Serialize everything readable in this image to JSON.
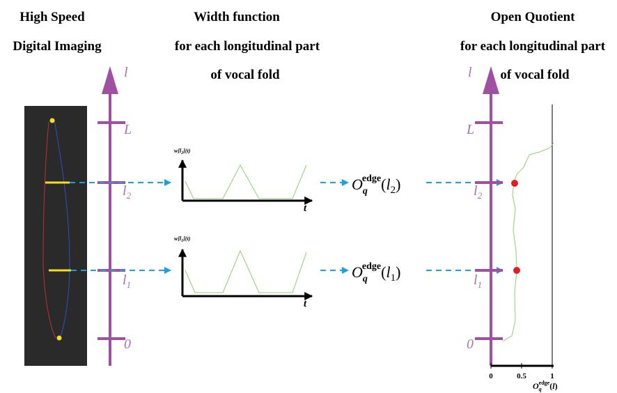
{
  "titles": {
    "imaging": [
      "High Speed",
      "Digital Imaging"
    ],
    "width": [
      "Width function",
      "for each longitudinal part",
      "of vocal fold"
    ],
    "oq": [
      "Open Quotient",
      "for each longitudinal part",
      "of vocal fold"
    ]
  },
  "left_axis": {
    "name": "l",
    "top": "L",
    "l2": {
      "base": "l",
      "sub": "2"
    },
    "l1": {
      "base": "l",
      "sub": "1"
    },
    "zero": "0"
  },
  "right_axis": {
    "name": "l",
    "top": "L",
    "l2": {
      "base": "l",
      "sub": "2"
    },
    "l1": {
      "base": "l",
      "sub": "1"
    },
    "zero": "0"
  },
  "width_plots": [
    {
      "label": {
        "pre": "w[",
        "arg": "l",
        "arg_sub": "2",
        "post": "](t)"
      },
      "t": "t"
    },
    {
      "label": {
        "pre": "w[",
        "arg": "l",
        "arg_sub": "1",
        "post": "](t)"
      },
      "t": "t"
    }
  ],
  "oq_labels": [
    {
      "base": "O",
      "sub": "q",
      "sup": "edge",
      "open": "(",
      "arg": "l",
      "arg_sub": "2",
      "close": ")"
    },
    {
      "base": "O",
      "sub": "q",
      "sup": "edge",
      "open": "(",
      "arg": "l",
      "arg_sub": "1",
      "close": ")"
    }
  ],
  "oq_plot": {
    "xlim": [
      0,
      1
    ],
    "xticks": [
      0,
      0.5,
      1
    ],
    "xlabel": {
      "base": "O",
      "sub": "q",
      "sup": "edge",
      "open": "(",
      "arg": "l",
      "close": ")"
    }
  }
}
